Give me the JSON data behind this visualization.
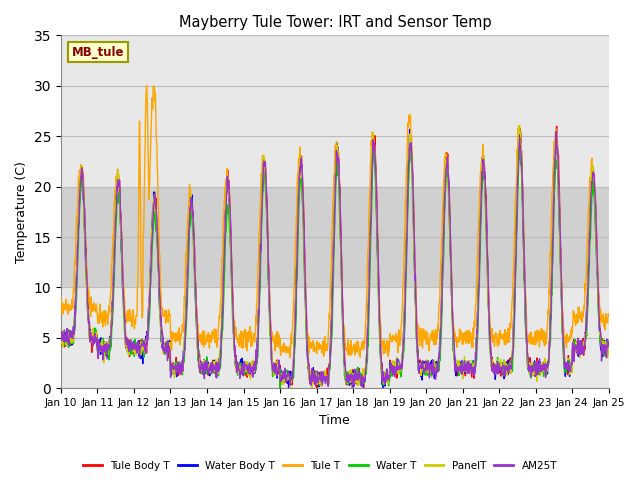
{
  "title": "Mayberry Tule Tower: IRT and Sensor Temp",
  "xlabel": "Time",
  "ylabel": "Temperature (C)",
  "ylim": [
    0,
    35
  ],
  "yticks": [
    0,
    5,
    10,
    15,
    20,
    25,
    30,
    35
  ],
  "xtick_labels": [
    "Jan 10",
    "Jan 11",
    "Jan 12",
    "Jan 13",
    "Jan 14",
    "Jan 15",
    "Jan 16",
    "Jan 17",
    "Jan 18",
    "Jan 19",
    "Jan 20",
    "Jan 21",
    "Jan 22",
    "Jan 23",
    "Jan 24",
    "Jan 25"
  ],
  "shaded_band": [
    10,
    20
  ],
  "watermark_text": "MB_tule",
  "watermark_color": "#8B0000",
  "watermark_bg": "#FFFFCC",
  "watermark_border": "#999900",
  "series": {
    "Tule Body T": {
      "color": "#FF0000",
      "lw": 1.0
    },
    "Water Body T": {
      "color": "#0000FF",
      "lw": 1.0
    },
    "Tule T": {
      "color": "#FFA500",
      "lw": 1.0
    },
    "Water T": {
      "color": "#00CC00",
      "lw": 1.0
    },
    "PanelT": {
      "color": "#CCCC00",
      "lw": 1.0
    },
    "AM25T": {
      "color": "#9933CC",
      "lw": 1.0
    }
  },
  "background_color": "#FFFFFF",
  "plot_bg": "#E8E8E8",
  "band_color": "#D0D0D0",
  "grid_color": "#BBBBBB"
}
